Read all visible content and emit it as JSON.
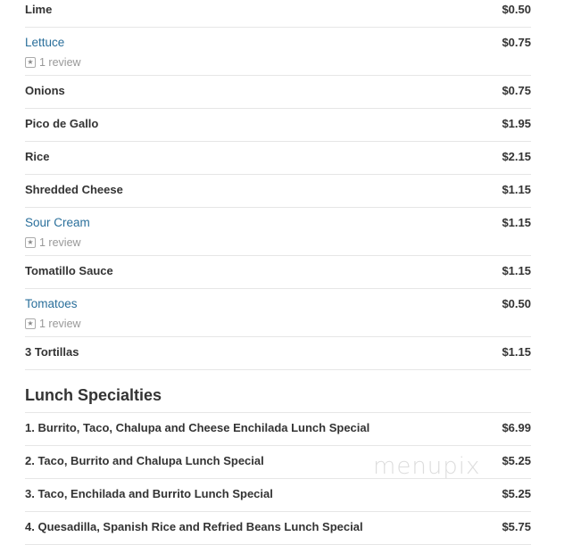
{
  "items": [
    {
      "name": "Lime",
      "price": "$0.50"
    },
    {
      "name": "Lettuce",
      "price": "$0.75",
      "reviews": "1 review"
    },
    {
      "name": "Onions",
      "price": "$0.75"
    },
    {
      "name": "Pico de Gallo",
      "price": "$1.95"
    },
    {
      "name": "Rice",
      "price": "$2.15"
    },
    {
      "name": "Shredded Cheese",
      "price": "$1.15"
    },
    {
      "name": "Sour Cream",
      "price": "$1.15",
      "reviews": "1 review"
    },
    {
      "name": "Tomatillo Sauce",
      "price": "$1.15"
    },
    {
      "name": "Tomatoes",
      "price": "$0.50",
      "reviews": "1 review"
    },
    {
      "name": "3 Tortillas",
      "price": "$1.15"
    }
  ],
  "lunch": {
    "title": "Lunch Specialties",
    "items": [
      {
        "name": "1. Burrito, Taco, Chalupa and Cheese Enchilada Lunch Special",
        "price": "$6.99"
      },
      {
        "name": "2. Taco, Burrito and Chalupa Lunch Special",
        "price": "$5.25"
      },
      {
        "name": "3. Taco, Enchilada and Burrito Lunch Special",
        "price": "$5.25"
      },
      {
        "name": "4. Quesadilla, Spanish Rice and Refried Beans Lunch Special",
        "price": "$5.75"
      }
    ]
  },
  "watermark": "menupix",
  "colors": {
    "link": "#2a6f9b",
    "text": "#333333"
  }
}
